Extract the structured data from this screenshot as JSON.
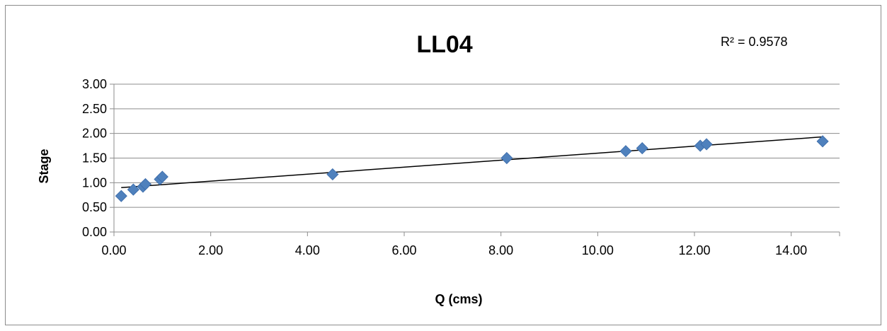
{
  "chart_data": {
    "type": "scatter",
    "title": "LL04",
    "xlabel": "Q (cms)",
    "ylabel": "Stage",
    "xlim": [
      0,
      15
    ],
    "ylim": [
      0,
      3
    ],
    "x_ticks": [
      "0.00",
      "2.00",
      "4.00",
      "6.00",
      "8.00",
      "10.00",
      "12.00",
      "14.00"
    ],
    "y_ticks": [
      "0.00",
      "0.50",
      "1.00",
      "1.50",
      "2.00",
      "2.50",
      "3.00"
    ],
    "grid": "horizontal",
    "legend": "none",
    "marker_color": "#4f81bd",
    "trendline": {
      "type": "linear",
      "x_range": [
        0.15,
        14.65
      ],
      "y_range": [
        0.9,
        1.93
      ],
      "color": "#000000",
      "r_squared_label": "R² = 0.9578"
    },
    "points": [
      {
        "x": 0.15,
        "y": 0.73
      },
      {
        "x": 0.4,
        "y": 0.86
      },
      {
        "x": 0.6,
        "y": 0.92
      },
      {
        "x": 0.65,
        "y": 0.97
      },
      {
        "x": 0.95,
        "y": 1.07
      },
      {
        "x": 1.0,
        "y": 1.12
      },
      {
        "x": 4.52,
        "y": 1.17
      },
      {
        "x": 8.12,
        "y": 1.5
      },
      {
        "x": 10.58,
        "y": 1.64
      },
      {
        "x": 10.92,
        "y": 1.7
      },
      {
        "x": 12.12,
        "y": 1.75
      },
      {
        "x": 12.25,
        "y": 1.78
      },
      {
        "x": 14.65,
        "y": 1.84
      }
    ]
  }
}
